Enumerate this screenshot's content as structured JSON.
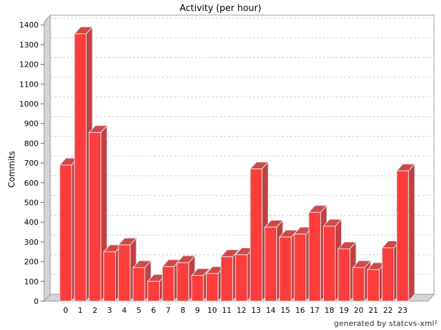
{
  "title": "Activity (per hour)",
  "footer": "generated by statcvs-xml²",
  "chart_data": {
    "type": "bar",
    "title": "Activity (per hour)",
    "xlabel": "",
    "ylabel": "Commits",
    "categories": [
      "0",
      "1",
      "2",
      "3",
      "4",
      "5",
      "6",
      "7",
      "8",
      "9",
      "10",
      "11",
      "12",
      "13",
      "14",
      "15",
      "16",
      "17",
      "18",
      "19",
      "20",
      "21",
      "22",
      "23"
    ],
    "values": [
      690,
      1355,
      855,
      250,
      285,
      170,
      100,
      175,
      195,
      130,
      140,
      225,
      235,
      670,
      375,
      325,
      340,
      450,
      380,
      265,
      170,
      160,
      270,
      660
    ],
    "yticks": [
      0,
      100,
      200,
      300,
      400,
      500,
      600,
      700,
      800,
      900,
      1000,
      1100,
      1200,
      1300,
      1400
    ],
    "ylim": [
      0,
      1420
    ],
    "grid": "horizontal-dashed",
    "legend": "none",
    "style_3d": true,
    "colors": {
      "bar_front": "#fd3c3c",
      "bar_side": "#c24040",
      "bar_top": "#d14848",
      "bar_outline": "#e3e3e3",
      "wall": "#d4d4d4",
      "wall_edge": "#9a9a9a",
      "grid": "#cccccc",
      "tick_text": "#000000",
      "background": "#ffffff"
    }
  }
}
